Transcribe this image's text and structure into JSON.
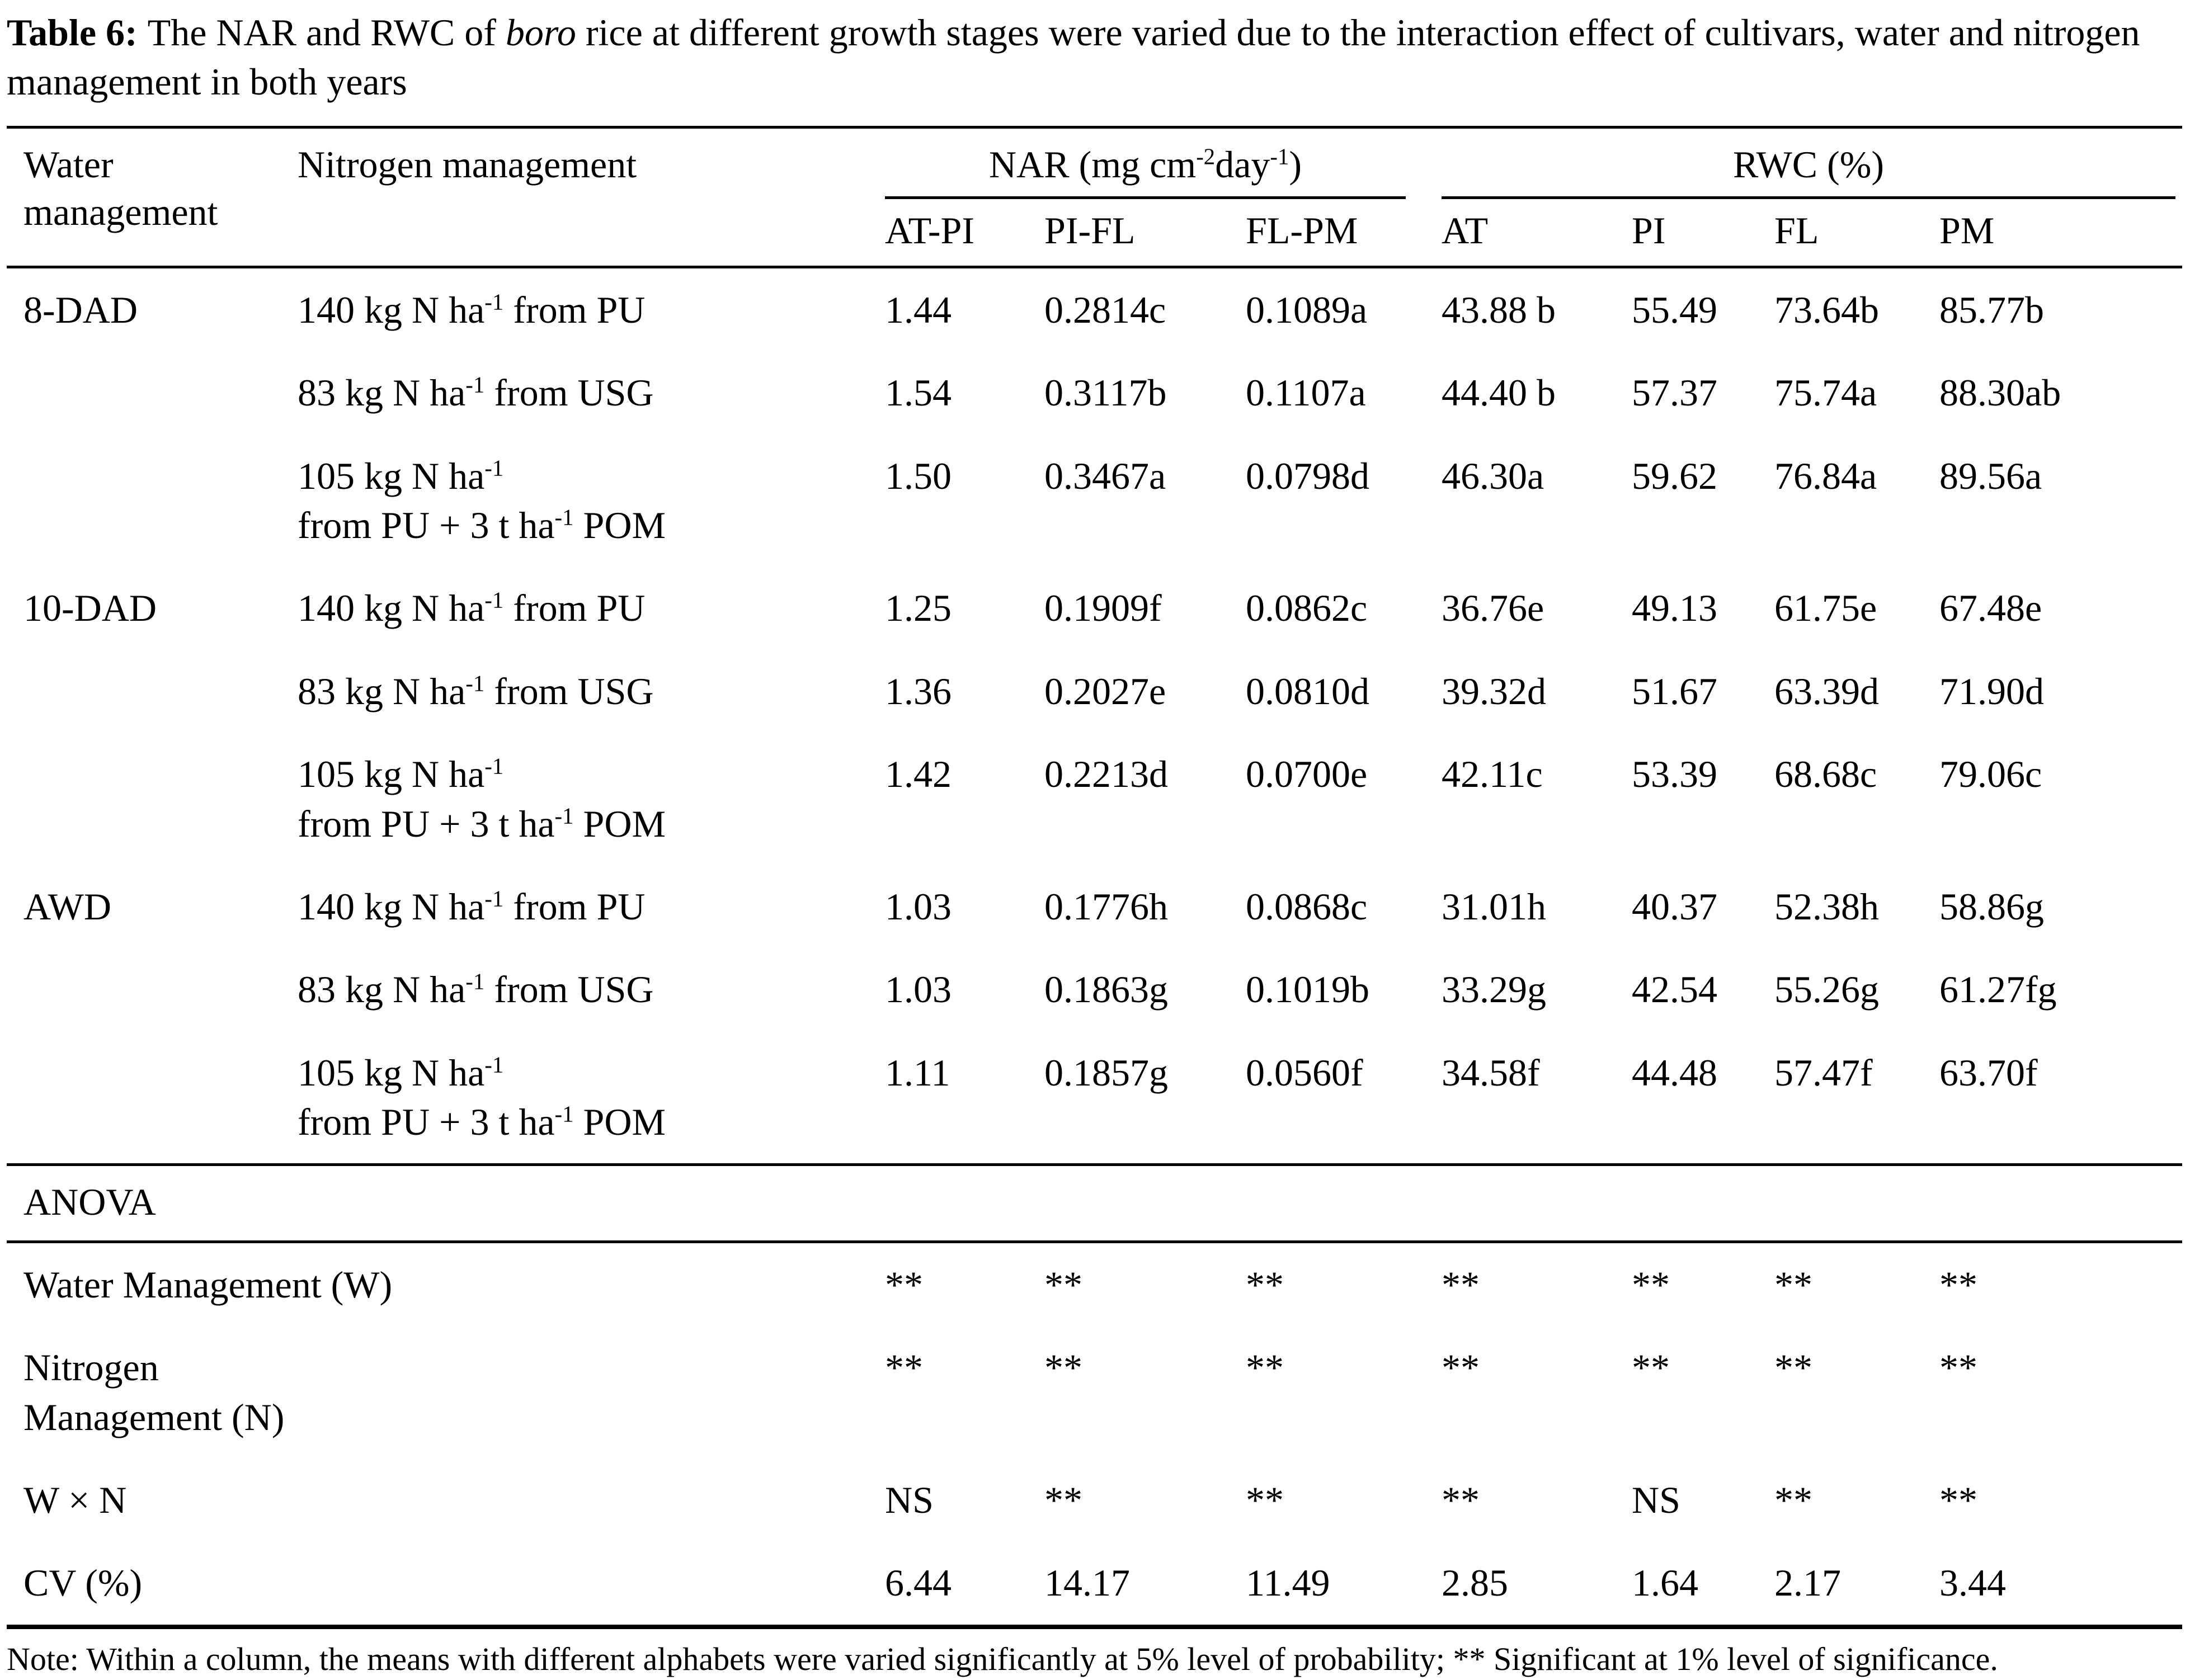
{
  "page": {
    "title_prefix": "Table 6:",
    "title_rest": "The NAR and RWC of ",
    "title_italic": "boro",
    "title_after": " rice at different growth stages were varied due to the interaction effect of cultivars, water and nitrogen management in both years",
    "note": "Note: Within a column, the means with different alphabets were varied significantly at 5% level of probability; ** Significant at 1% level of significance."
  },
  "header": {
    "water": "Water management",
    "nitrogen": "Nitrogen management",
    "nar_group": [
      {
        "t": "NAR (mg cm"
      },
      {
        "sup": "-2"
      },
      {
        "t": "day"
      },
      {
        "sup": "-1"
      },
      {
        "t": ")"
      }
    ],
    "rwc_group": "RWC (%)",
    "sub": [
      "AT-PI",
      "PI-FL",
      "FL-PM",
      "AT",
      "PI",
      "FL",
      "PM"
    ]
  },
  "rows": [
    {
      "water": "8-DAD",
      "n1": [
        {
          "t": "140 kg N ha"
        },
        {
          "sup": "-1"
        },
        {
          "t": " from PU"
        }
      ],
      "v": [
        "1.44",
        "0.2814c",
        "0.1089a",
        "43.88 b",
        "55.49",
        "73.64b",
        "85.77b"
      ]
    },
    {
      "water": "",
      "n1": [
        {
          "t": "83 kg N ha"
        },
        {
          "sup": "-1"
        },
        {
          "t": " from USG"
        }
      ],
      "v": [
        "1.54",
        "0.3117b",
        "0.1107a",
        "44.40 b",
        "57.37",
        "75.74a",
        "88.30ab"
      ]
    },
    {
      "water": "",
      "n1": [
        {
          "t": "105 kg N ha"
        },
        {
          "sup": "-1"
        }
      ],
      "n2": [
        {
          "t": "from PU + 3 t ha"
        },
        {
          "sup": "-1"
        },
        {
          "t": " POM"
        }
      ],
      "v": [
        "1.50",
        "0.3467a",
        "0.0798d",
        "46.30a",
        "59.62",
        "76.84a",
        "89.56a"
      ]
    },
    {
      "water": "10-DAD",
      "n1": [
        {
          "t": "140 kg N ha"
        },
        {
          "sup": "-1"
        },
        {
          "t": " from PU"
        }
      ],
      "v": [
        "1.25",
        "0.1909f",
        "0.0862c",
        "36.76e",
        "49.13",
        "61.75e",
        "67.48e"
      ]
    },
    {
      "water": "",
      "n1": [
        {
          "t": "83 kg N ha"
        },
        {
          "sup": "-1"
        },
        {
          "t": " from USG"
        }
      ],
      "v": [
        "1.36",
        "0.2027e",
        "0.0810d",
        "39.32d",
        "51.67",
        "63.39d",
        "71.90d"
      ]
    },
    {
      "water": "",
      "n1": [
        {
          "t": "105 kg N ha"
        },
        {
          "sup": "-1"
        }
      ],
      "n2": [
        {
          "t": "from PU + 3 t ha"
        },
        {
          "sup": "-1"
        },
        {
          "t": " POM"
        }
      ],
      "v": [
        "1.42",
        "0.2213d",
        "0.0700e",
        "42.11c",
        "53.39",
        "68.68c",
        "79.06c"
      ]
    },
    {
      "water": "AWD",
      "n1": [
        {
          "t": "140 kg N ha"
        },
        {
          "sup": "-1"
        },
        {
          "t": " from PU"
        }
      ],
      "v": [
        "1.03",
        "0.1776h",
        "0.0868c",
        "31.01h",
        "40.37",
        "52.38h",
        "58.86g"
      ]
    },
    {
      "water": "",
      "n1": [
        {
          "t": "83 kg N ha"
        },
        {
          "sup": "-1"
        },
        {
          "t": " from USG"
        }
      ],
      "v": [
        "1.03",
        "0.1863g",
        "0.1019b",
        "33.29g",
        "42.54",
        "55.26g",
        "61.27fg"
      ]
    },
    {
      "water": "",
      "n1": [
        {
          "t": "105 kg N ha"
        },
        {
          "sup": "-1"
        }
      ],
      "n2": [
        {
          "t": "from PU + 3 t ha"
        },
        {
          "sup": "-1"
        },
        {
          "t": " POM"
        }
      ],
      "v": [
        "1.11",
        "0.1857g",
        "0.0560f",
        "34.58f",
        "44.48",
        "57.47f",
        "63.70f"
      ]
    }
  ],
  "anova": {
    "label": "ANOVA",
    "rows": [
      {
        "label": "Water Management (W)",
        "v": [
          "**",
          "**",
          "**",
          "**",
          "**",
          "**",
          "**"
        ]
      },
      {
        "label": "Nitrogen",
        "label2": "Management (N)",
        "v": [
          "**",
          "**",
          "**",
          "**",
          "**",
          "**",
          "**"
        ]
      },
      {
        "label": "W × N",
        "v": [
          "NS",
          "**",
          "**",
          "**",
          "NS",
          "**",
          "**"
        ]
      },
      {
        "label": "CV (%)",
        "v": [
          "6.44",
          "14.17",
          "11.49",
          "2.85",
          "1.64",
          "2.17",
          "3.44"
        ]
      }
    ]
  }
}
